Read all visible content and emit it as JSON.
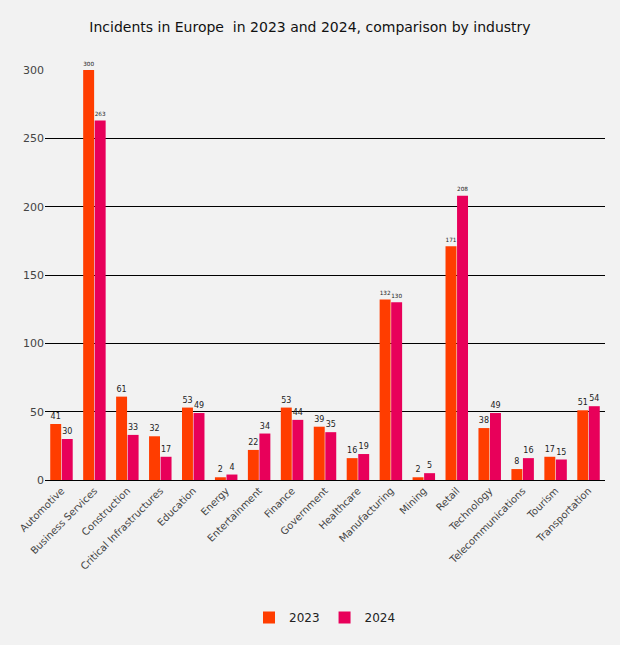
{
  "chart_data": {
    "type": "bar",
    "title": "Incidents in Europe  in 2023 and 2024, comparison by industry",
    "categories": [
      "Automotive",
      "Business Services",
      "Construction",
      "Critical Infrastructures",
      "Education",
      "Energy",
      "Entertainment",
      "Finance",
      "Government",
      "Healthcare",
      "Manufacturing",
      "Mining",
      "Retail",
      "Technology",
      "Telecommunications",
      "Tourism",
      "Transportation"
    ],
    "series": [
      {
        "name": "2023",
        "color": "#ff3d00",
        "values": [
          41,
          300,
          61,
          32,
          53,
          2,
          22,
          53,
          39,
          16,
          132,
          2,
          171,
          38,
          8,
          17,
          51
        ]
      },
      {
        "name": "2024",
        "color": "#e8005a",
        "values": [
          30,
          263,
          33,
          17,
          49,
          4,
          34,
          44,
          35,
          19,
          130,
          5,
          208,
          49,
          16,
          15,
          54
        ]
      }
    ],
    "ylim": [
      0,
      300
    ],
    "yticks": [
      0,
      50,
      100,
      150,
      200,
      250,
      300
    ],
    "grid": true,
    "legend": "bottom",
    "data_labels": true
  }
}
